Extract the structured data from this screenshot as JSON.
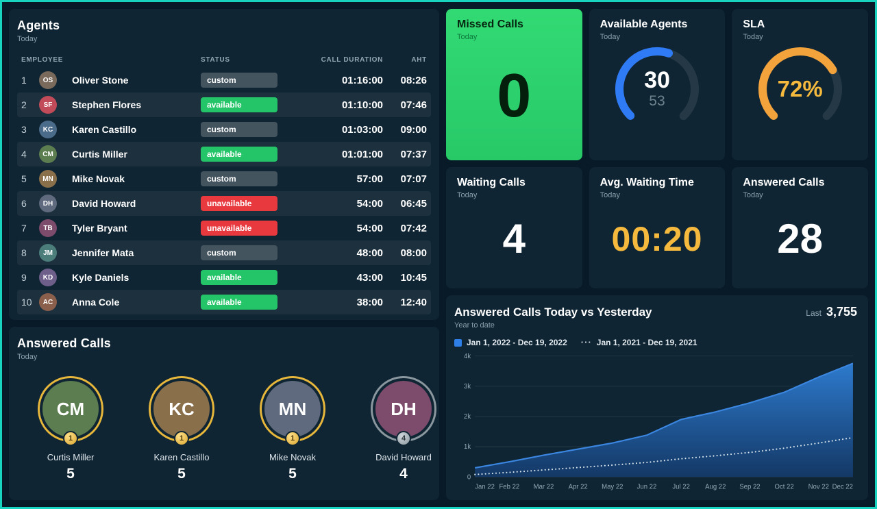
{
  "agents": {
    "title": "Agents",
    "subtitle": "Today",
    "columns": [
      "EMPLOYEE",
      "STATUS",
      "CALL DURATION",
      "AHT"
    ],
    "rows": [
      {
        "rank": "1",
        "name": "Oliver Stone",
        "status": "custom",
        "call_duration": "01:16:00",
        "aht": "08:26"
      },
      {
        "rank": "2",
        "name": "Stephen Flores",
        "status": "available",
        "call_duration": "01:10:00",
        "aht": "07:46"
      },
      {
        "rank": "3",
        "name": "Karen Castillo",
        "status": "custom",
        "call_duration": "01:03:00",
        "aht": "09:00"
      },
      {
        "rank": "4",
        "name": "Curtis Miller",
        "status": "available",
        "call_duration": "01:01:00",
        "aht": "07:37"
      },
      {
        "rank": "5",
        "name": "Mike Novak",
        "status": "custom",
        "call_duration": "57:00",
        "aht": "07:07"
      },
      {
        "rank": "6",
        "name": "David Howard",
        "status": "unavailable",
        "call_duration": "54:00",
        "aht": "06:45"
      },
      {
        "rank": "7",
        "name": "Tyler Bryant",
        "status": "unavailable",
        "call_duration": "54:00",
        "aht": "07:42"
      },
      {
        "rank": "8",
        "name": "Jennifer Mata",
        "status": "custom",
        "call_duration": "48:00",
        "aht": "08:00"
      },
      {
        "rank": "9",
        "name": "Kyle Daniels",
        "status": "available",
        "call_duration": "43:00",
        "aht": "10:45"
      },
      {
        "rank": "10",
        "name": "Anna Cole",
        "status": "available",
        "call_duration": "38:00",
        "aht": "12:40"
      }
    ]
  },
  "answered_leaderboard": {
    "title": "Answered Calls",
    "subtitle": "Today",
    "people": [
      {
        "name": "Curtis Miller",
        "value": "5",
        "badge": "1",
        "ring": "gold"
      },
      {
        "name": "Karen Castillo",
        "value": "5",
        "badge": "1",
        "ring": "gold"
      },
      {
        "name": "Mike Novak",
        "value": "5",
        "badge": "1",
        "ring": "gold"
      },
      {
        "name": "David Howard",
        "value": "4",
        "badge": "4",
        "ring": "gray"
      }
    ]
  },
  "cards": {
    "missed": {
      "title": "Missed Calls",
      "subtitle": "Today",
      "value": "0",
      "accent": "#2ed573"
    },
    "available": {
      "title": "Available Agents",
      "subtitle": "Today",
      "value": "30",
      "total": "53",
      "accent": "#2f7bf6"
    },
    "sla": {
      "title": "SLA",
      "subtitle": "Today",
      "value": "72%",
      "accent": "#f2a33c"
    },
    "waiting": {
      "title": "Waiting Calls",
      "subtitle": "Today",
      "value": "4"
    },
    "avg_wait": {
      "title": "Avg. Waiting Time",
      "subtitle": "Today",
      "value": "00:20",
      "accent": "#f5b93e"
    },
    "answered": {
      "title": "Answered Calls",
      "subtitle": "Today",
      "value": "28"
    }
  },
  "chart_panel": {
    "title": "Answered Calls Today vs Yesterday",
    "subtitle": "Year to date",
    "last_label": "Last",
    "last_value": "3,755"
  },
  "chart_data": {
    "type": "area",
    "title": "Answered Calls Today vs Yesterday",
    "x": [
      "Jan 22",
      "Feb 22",
      "Mar 22",
      "Apr 22",
      "May 22",
      "Jun 22",
      "Jul 22",
      "Aug 22",
      "Sep 22",
      "Oct 22",
      "Nov 22",
      "Dec 22"
    ],
    "series": [
      {
        "name": "Jan 1, 2022 - Dec 19, 2022",
        "style": "solid-area",
        "color": "#3b86e0",
        "values": [
          300,
          500,
          720,
          920,
          1120,
          1380,
          1900,
          2150,
          2450,
          2800,
          3300,
          3755
        ]
      },
      {
        "name": "Jan 1, 2021 - Dec 19, 2021",
        "style": "dotted",
        "color": "#d7e4ec",
        "values": [
          80,
          150,
          230,
          310,
          390,
          480,
          600,
          700,
          810,
          950,
          1120,
          1300
        ]
      }
    ],
    "ylim": [
      0,
      4000
    ],
    "yticks": [
      {
        "v": 0,
        "label": "0"
      },
      {
        "v": 1000,
        "label": "1k"
      },
      {
        "v": 2000,
        "label": "2k"
      },
      {
        "v": 3000,
        "label": "3k"
      },
      {
        "v": 4000,
        "label": "4k"
      }
    ],
    "grid": true,
    "legend_position": "top-left"
  }
}
